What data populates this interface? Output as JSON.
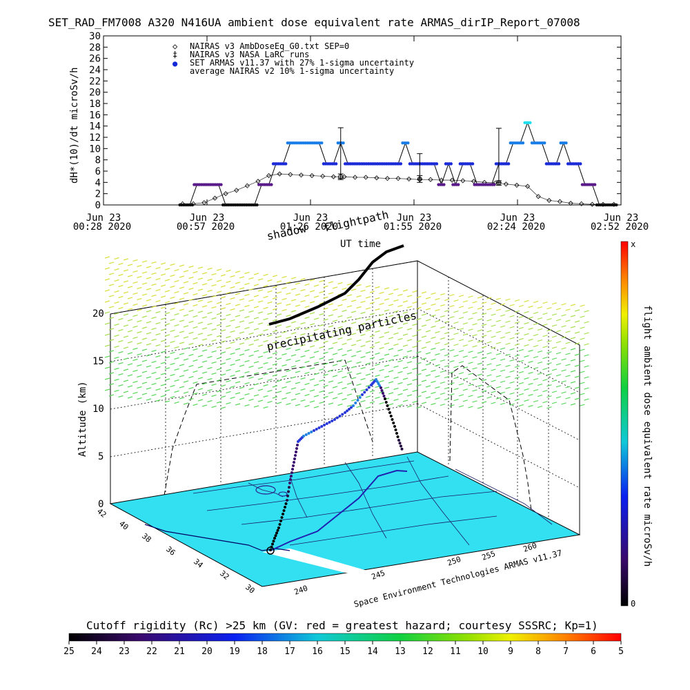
{
  "title": "SET_RAD_FM7008  A320 N416UA ambient dose equivalent rate ARMAS_dirIP_Report_07008",
  "chart_data": [
    {
      "type": "line",
      "ylabel": "dH*(10)/dt microSv/h",
      "xlabel": "UT time",
      "ylim": [
        0,
        30
      ],
      "yticks": [
        "0",
        "2",
        "4",
        "6",
        "8",
        "10",
        "12",
        "14",
        "16",
        "18",
        "20",
        "22",
        "24",
        "26",
        "28",
        "30"
      ],
      "xticks": [
        {
          "line1": "Jun 23",
          "line2": "00:28 2020"
        },
        {
          "line1": "Jun 23",
          "line2": "00:57 2020"
        },
        {
          "line1": "Jun 23",
          "line2": "01:26 2020"
        },
        {
          "line1": "Jun 23",
          "line2": "01:55 2020"
        },
        {
          "line1": "Jun 23",
          "line2": "02:24 2020"
        },
        {
          "line1": "Jun 23",
          "line2": "02:52 2020"
        }
      ],
      "xlim_minutes": [
        0,
        144
      ],
      "legend": [
        {
          "symbol": "◇",
          "label": "NAIRAS v3 AmbDoseEq_G0.txt SEP=0"
        },
        {
          "symbol": "‡",
          "label": "NAIRAS v3 NASA LaRC runs"
        },
        {
          "symbol": "●",
          "label": "SET ARMAS v11.37 with 27% 1-sigma uncertainty"
        },
        {
          "symbol": "",
          "label": "average NAIRAS v2 10% 1-sigma uncertainty"
        }
      ],
      "series": [
        {
          "name": "NAIRAS v3 AmbDoseEq_G0.txt SEP=0",
          "x": [
            22,
            25,
            28,
            31,
            34,
            37,
            40,
            43,
            46,
            49,
            52,
            55,
            58,
            61,
            64,
            67,
            70,
            73,
            76,
            79,
            82,
            85,
            88,
            91,
            94,
            97,
            100,
            103,
            106,
            109,
            112,
            115,
            118,
            121,
            124,
            127,
            130,
            133,
            136,
            139,
            142
          ],
          "y": [
            0.2,
            0.2,
            0.4,
            1.2,
            2.0,
            2.6,
            3.4,
            4.2,
            5.2,
            5.5,
            5.4,
            5.3,
            5.2,
            5.1,
            5.0,
            5.0,
            4.9,
            4.9,
            4.8,
            4.7,
            4.7,
            4.6,
            4.5,
            4.5,
            4.4,
            4.4,
            4.3,
            4.2,
            4.0,
            3.9,
            3.7,
            3.5,
            3.3,
            1.5,
            0.8,
            0.6,
            0.3,
            0.2,
            0.1,
            0.1,
            0.1
          ]
        },
        {
          "name": "SET ARMAS v11.37 with 27% 1-sigma uncertainty",
          "x": [
            22,
            24,
            26,
            28,
            30,
            32,
            34,
            36,
            38,
            40,
            42,
            44,
            46,
            48,
            50,
            52,
            54,
            56,
            58,
            60,
            62,
            64,
            66,
            68,
            70,
            72,
            74,
            76,
            78,
            80,
            82,
            84,
            86,
            88,
            90,
            92,
            94,
            96,
            98,
            100,
            102,
            104,
            106,
            108,
            110,
            112,
            114,
            116,
            118,
            120,
            122,
            124,
            126,
            128,
            130,
            132,
            134,
            136,
            138,
            140,
            142
          ],
          "y": [
            0,
            0,
            3.6,
            3.6,
            3.6,
            3.6,
            0,
            0,
            0,
            0,
            0,
            3.6,
            3.6,
            7.3,
            7.3,
            11,
            11,
            11,
            11,
            11,
            7.3,
            7.3,
            11,
            7.3,
            7.3,
            7.3,
            7.3,
            7.3,
            7.3,
            7.3,
            7.3,
            11,
            7.3,
            7.3,
            7.3,
            7.3,
            3.6,
            7.3,
            3.6,
            7.3,
            7.3,
            3.6,
            3.6,
            3.6,
            7.3,
            7.3,
            11,
            11,
            14.6,
            11,
            11,
            7.3,
            7.3,
            11,
            7.3,
            7.3,
            3.6,
            3.6,
            0,
            0,
            0
          ]
        },
        {
          "name": "NAIRAS v3 NASA LaRC runs",
          "x": [
            66,
            88,
            110
          ],
          "y": [
            5.0,
            4.6,
            3.9
          ],
          "err": [
            0.5,
            0.6,
            0.4
          ]
        },
        {
          "name": "average NAIRAS v2 10% 1-sigma uncertainty",
          "x": [
            66,
            88,
            110
          ],
          "y": [
            9.2,
            6.8,
            8.8
          ],
          "err": [
            4.5,
            2.3,
            4.8
          ]
        }
      ]
    },
    {
      "type": "scatter",
      "zlabel": "Altitude (km)",
      "zticks": [
        "0",
        "5",
        "10",
        "15",
        "20"
      ],
      "lat_ticks": [
        "42",
        "40",
        "38",
        "36",
        "34",
        "32",
        "30"
      ],
      "lon_ticks": [
        "240",
        "245",
        "250",
        "255",
        "260"
      ],
      "labels": {
        "shadow": "shadow",
        "flightpath": "flightpath",
        "particles": "precipitating particles"
      },
      "credit": "Space Environment Technologies ARMAS v11.37",
      "colorbar_label": "flight ambient dose equivalent rate microSv/h",
      "colorbar_top": "x",
      "colorbar_bottom": "0"
    }
  ],
  "bottom_colorbar": {
    "title": "Cutoff rigidity (Rc) >25 km (GV: red = greatest hazard; courtesy SSSRC; Kp=1)",
    "ticks": [
      "25",
      "24",
      "23",
      "22",
      "21",
      "20",
      "19",
      "18",
      "17",
      "16",
      "15",
      "14",
      "13",
      "12",
      "11",
      "10",
      "9",
      "8",
      "7",
      "6",
      "5"
    ]
  }
}
